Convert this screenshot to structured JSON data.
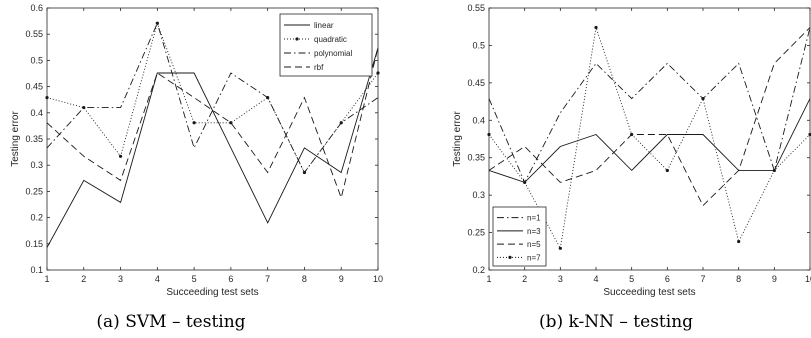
{
  "colors": {
    "line": "#1a1a1a",
    "axis": "#262626",
    "background": "#ffffff"
  },
  "chart_data": [
    {
      "type": "line",
      "caption": "(a) SVM – testing",
      "xlabel": "Succeeding test sets",
      "ylabel": "Testing error",
      "xlim": [
        1,
        10
      ],
      "ylim": [
        0.1,
        0.6
      ],
      "xticks": [
        1,
        2,
        3,
        4,
        5,
        6,
        7,
        8,
        9,
        10
      ],
      "yticks": [
        "0.1",
        "0.15",
        "0.2",
        "0.25",
        "0.3",
        "0.35",
        "0.4",
        "0.45",
        "0.5",
        "0.55",
        "0.6"
      ],
      "grid": false,
      "legend_position": "top-right",
      "x": [
        1,
        2,
        3,
        4,
        5,
        6,
        7,
        8,
        9,
        10
      ],
      "series": [
        {
          "name": "linear",
          "style": "solid",
          "values": [
            0.143,
            0.271,
            0.229,
            0.476,
            0.476,
            0.333,
            0.19,
            0.333,
            0.286,
            0.524
          ]
        },
        {
          "name": "quadratic",
          "style": "dotted-marker",
          "values": [
            0.429,
            0.41,
            0.317,
            0.571,
            0.381,
            0.381,
            0.429,
            0.286,
            0.381,
            0.476
          ]
        },
        {
          "name": "polynomial",
          "style": "dashdot",
          "values": [
            0.333,
            0.41,
            0.41,
            0.571,
            0.333,
            0.476,
            0.429,
            0.286,
            0.381,
            0.429
          ]
        },
        {
          "name": "rbf",
          "style": "dashed",
          "values": [
            0.381,
            0.317,
            0.271,
            0.476,
            0.429,
            0.381,
            0.286,
            0.429,
            0.238,
            0.524
          ]
        }
      ]
    },
    {
      "type": "line",
      "caption": "(b) k-NN – testing",
      "xlabel": "Succeeding test sets",
      "ylabel": "Testing error",
      "xlim": [
        1,
        10
      ],
      "ylim": [
        0.2,
        0.55
      ],
      "xticks": [
        1,
        2,
        3,
        4,
        5,
        6,
        7,
        8,
        9,
        10
      ],
      "yticks": [
        "0.2",
        "0.25",
        "0.3",
        "0.35",
        "0.4",
        "0.45",
        "0.5",
        "0.55"
      ],
      "grid": false,
      "legend_position": "bottom-left",
      "x": [
        1,
        2,
        3,
        4,
        5,
        6,
        7,
        8,
        9,
        10
      ],
      "series": [
        {
          "name": "n=1",
          "style": "dashdot",
          "values": [
            0.429,
            0.317,
            0.41,
            0.476,
            0.429,
            0.476,
            0.429,
            0.476,
            0.333,
            0.524
          ]
        },
        {
          "name": "n=3",
          "style": "solid",
          "values": [
            0.333,
            0.317,
            0.365,
            0.381,
            0.333,
            0.381,
            0.381,
            0.333,
            0.333,
            0.429
          ]
        },
        {
          "name": "n=5",
          "style": "dashed",
          "values": [
            0.333,
            0.365,
            0.317,
            0.333,
            0.381,
            0.381,
            0.286,
            0.333,
            0.476,
            0.524
          ]
        },
        {
          "name": "n=7",
          "style": "dotted-marker",
          "values": [
            0.381,
            0.317,
            0.229,
            0.524,
            0.381,
            0.333,
            0.429,
            0.238,
            0.333,
            0.381
          ]
        }
      ]
    }
  ]
}
